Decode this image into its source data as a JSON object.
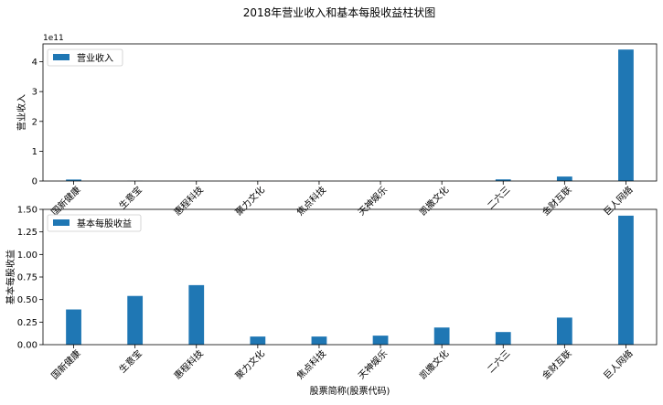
{
  "figure": {
    "title": "2018年营业收入和基本每股收益柱状图",
    "bar_color": "#1f77b4"
  },
  "chart_data": [
    {
      "type": "bar",
      "title": "",
      "xlabel": "",
      "ylabel": "营业收入",
      "categories": [
        "国新健康",
        "生意宝",
        "惠程科技",
        "聚力文化",
        "焦点科技",
        "天神娱乐",
        "凯撒文化",
        "二六三",
        "金财互联",
        "巨人网络"
      ],
      "series": [
        {
          "name": "营业收入",
          "values": [
            5000000000.0,
            500000000.0,
            300000000.0,
            400000000.0,
            300000000.0,
            200000000.0,
            200000000.0,
            5500000000.0,
            15000000000.0,
            441000000000.0
          ]
        }
      ],
      "ylim": [
        0,
        460000000000.0
      ],
      "yticks": [
        0,
        100000000000.0,
        200000000000.0,
        300000000000.0,
        400000000000.0
      ],
      "ytick_labels": [
        "0",
        "1",
        "2",
        "3",
        "4"
      ],
      "offset_text": "1e11",
      "legend": "upper-left",
      "grid": false
    },
    {
      "type": "bar",
      "title": "",
      "xlabel": "股票简称(股票代码)",
      "ylabel": "基本每股收益",
      "categories": [
        "国新健康",
        "生意宝",
        "惠程科技",
        "聚力文化",
        "焦点科技",
        "天神娱乐",
        "凯撒文化",
        "二六三",
        "金财互联",
        "巨人网络"
      ],
      "series": [
        {
          "name": "基本每股收益",
          "values": [
            0.39,
            0.54,
            0.66,
            0.09,
            0.09,
            0.1,
            0.19,
            0.14,
            0.3,
            1.43
          ]
        }
      ],
      "ylim": [
        0,
        1.5
      ],
      "yticks": [
        0,
        0.25,
        0.5,
        0.75,
        1.0,
        1.25,
        1.5
      ],
      "ytick_labels": [
        "0.00",
        "0.25",
        "0.50",
        "0.75",
        "1.00",
        "1.25",
        "1.50"
      ],
      "legend": "upper-left",
      "grid": false
    }
  ]
}
